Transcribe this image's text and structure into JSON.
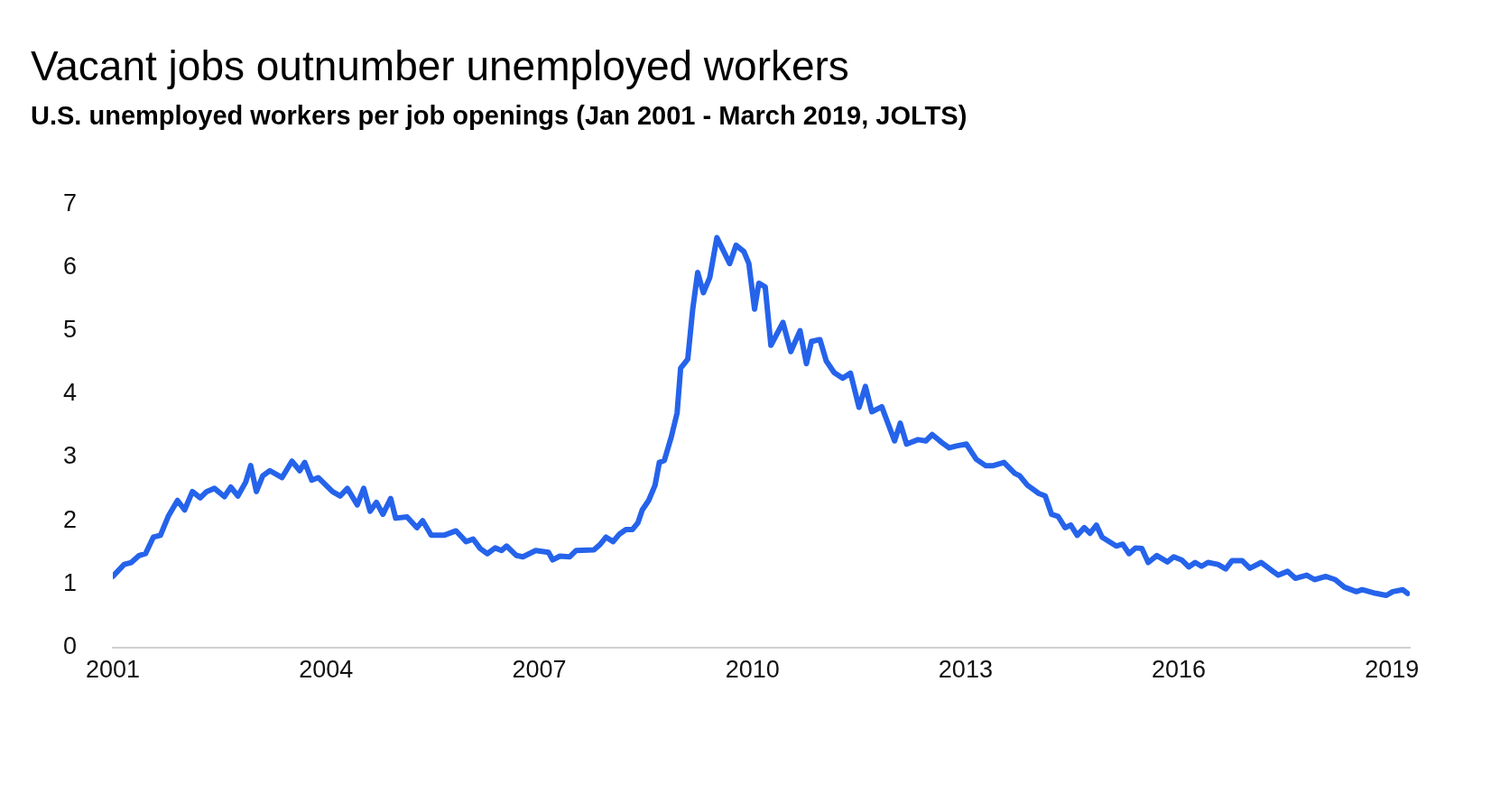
{
  "chart_data": {
    "type": "line",
    "title": "Vacant jobs outnumber unemployed workers",
    "subtitle": "U.S. unemployed workers per job openings (Jan 2001 - March 2019, JOLTS)",
    "x": [
      2001.0,
      2001.16,
      2001.26,
      2001.37,
      2001.46,
      2001.57,
      2001.67,
      2001.78,
      2001.91,
      2002.01,
      2002.12,
      2002.23,
      2002.32,
      2002.43,
      2002.57,
      2002.66,
      2002.76,
      2002.87,
      2002.94,
      2003.02,
      2003.11,
      2003.21,
      2003.38,
      2003.52,
      2003.63,
      2003.7,
      2003.8,
      2003.89,
      2004.09,
      2004.2,
      2004.3,
      2004.44,
      2004.53,
      2004.62,
      2004.71,
      2004.8,
      2004.91,
      2004.98,
      2005.14,
      2005.28,
      2005.36,
      2005.48,
      2005.66,
      2005.83,
      2005.97,
      2006.07,
      2006.17,
      2006.27,
      2006.38,
      2006.47,
      2006.54,
      2006.68,
      2006.77,
      2006.95,
      2007.13,
      2007.19,
      2007.29,
      2007.43,
      2007.52,
      2007.77,
      2007.86,
      2007.94,
      2008.04,
      2008.13,
      2008.22,
      2008.31,
      2008.39,
      2008.45,
      2008.54,
      2008.63,
      2008.69,
      2008.76,
      2008.86,
      2008.94,
      2008.99,
      2009.09,
      2009.16,
      2009.23,
      2009.31,
      2009.4,
      2009.5,
      2009.68,
      2009.77,
      2009.88,
      2009.95,
      2010.03,
      2010.09,
      2010.18,
      2010.26,
      2010.43,
      2010.54,
      2010.67,
      2010.76,
      2010.83,
      2010.95,
      2011.04,
      2011.15,
      2011.27,
      2011.38,
      2011.5,
      2011.59,
      2011.68,
      2011.82,
      2012.0,
      2012.08,
      2012.17,
      2012.33,
      2012.44,
      2012.53,
      2012.67,
      2012.77,
      2012.87,
      2013.01,
      2013.15,
      2013.28,
      2013.39,
      2013.54,
      2013.69,
      2013.76,
      2013.87,
      2014.03,
      2014.12,
      2014.21,
      2014.3,
      2014.4,
      2014.48,
      2014.57,
      2014.67,
      2014.75,
      2014.84,
      2014.92,
      2015.12,
      2015.21,
      2015.3,
      2015.39,
      2015.48,
      2015.57,
      2015.69,
      2015.84,
      2015.93,
      2016.04,
      2016.14,
      2016.23,
      2016.32,
      2016.41,
      2016.55,
      2016.66,
      2016.75,
      2016.89,
      2017.0,
      2017.16,
      2017.3,
      2017.4,
      2017.53,
      2017.64,
      2017.8,
      2017.91,
      2018.07,
      2018.2,
      2018.33,
      2018.5,
      2018.58,
      2018.74,
      2018.92,
      2019.01,
      2019.15,
      2019.22
    ],
    "series": [
      {
        "color": "#2563eb",
        "values": [
          1.12,
          1.31,
          1.34,
          1.45,
          1.48,
          1.74,
          1.77,
          2.07,
          2.32,
          2.17,
          2.46,
          2.36,
          2.46,
          2.51,
          2.38,
          2.53,
          2.39,
          2.61,
          2.87,
          2.46,
          2.71,
          2.79,
          2.68,
          2.94,
          2.79,
          2.92,
          2.64,
          2.68,
          2.46,
          2.39,
          2.51,
          2.25,
          2.51,
          2.15,
          2.29,
          2.1,
          2.35,
          2.04,
          2.06,
          1.89,
          2.0,
          1.77,
          1.77,
          1.84,
          1.67,
          1.71,
          1.56,
          1.48,
          1.57,
          1.53,
          1.6,
          1.45,
          1.43,
          1.53,
          1.5,
          1.38,
          1.44,
          1.43,
          1.53,
          1.54,
          1.63,
          1.74,
          1.67,
          1.79,
          1.86,
          1.86,
          1.97,
          2.17,
          2.32,
          2.56,
          2.92,
          2.95,
          3.33,
          3.7,
          4.41,
          4.55,
          5.34,
          5.92,
          5.6,
          5.84,
          6.47,
          6.06,
          6.35,
          6.25,
          6.06,
          5.34,
          5.75,
          5.69,
          4.77,
          5.13,
          4.67,
          5.0,
          4.48,
          4.83,
          4.86,
          4.52,
          4.34,
          4.25,
          4.33,
          3.79,
          4.12,
          3.72,
          3.8,
          3.26,
          3.54,
          3.21,
          3.28,
          3.26,
          3.36,
          3.23,
          3.15,
          3.18,
          3.21,
          2.97,
          2.87,
          2.87,
          2.92,
          2.75,
          2.71,
          2.56,
          2.43,
          2.39,
          2.1,
          2.07,
          1.89,
          1.93,
          1.77,
          1.89,
          1.8,
          1.93,
          1.74,
          1.6,
          1.63,
          1.48,
          1.57,
          1.56,
          1.34,
          1.45,
          1.35,
          1.43,
          1.38,
          1.27,
          1.34,
          1.28,
          1.34,
          1.31,
          1.24,
          1.37,
          1.37,
          1.25,
          1.34,
          1.22,
          1.14,
          1.2,
          1.09,
          1.14,
          1.07,
          1.12,
          1.07,
          0.95,
          0.88,
          0.91,
          0.86,
          0.82,
          0.88,
          0.91,
          0.85
        ]
      }
    ],
    "xlim": [
      2001,
      2019.25
    ],
    "xticks": [
      2001,
      2004,
      2007,
      2010,
      2013,
      2016,
      2019
    ],
    "ylim": [
      0,
      7
    ],
    "yticks": [
      0,
      1,
      2,
      3,
      4,
      5,
      6,
      7
    ],
    "grid": false,
    "legend": false,
    "marker": "none",
    "line_style": "solid"
  }
}
